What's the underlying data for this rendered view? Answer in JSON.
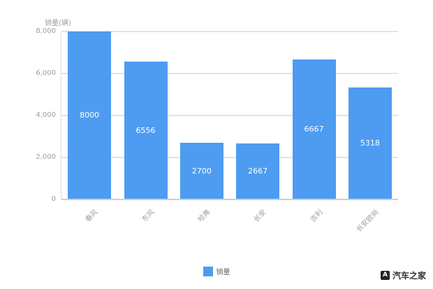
{
  "chart_data": {
    "type": "bar",
    "title": "",
    "ylabel": "销量(辆)",
    "xlabel": "",
    "categories": [
      "春风",
      "东风",
      "哈弗",
      "长安",
      "吉利",
      "长安欧尚"
    ],
    "values": [
      8000,
      6556,
      2700,
      2667,
      6667,
      5318
    ],
    "value_labels": [
      "8000",
      "6556",
      "2700",
      "2667",
      "6667",
      "5318"
    ],
    "ylim": [
      0,
      8000
    ],
    "y_ticks": [
      0,
      2000,
      4000,
      6000,
      8000
    ],
    "y_tick_labels": [
      "0",
      "2,000",
      "4,000",
      "6,000",
      "8,000"
    ],
    "grid": true,
    "legend_position": "bottom",
    "bar_color": "#4d9cf1"
  },
  "legend": {
    "label": "销量"
  },
  "watermark": {
    "icon_letter": "A",
    "text": "汽车之家"
  }
}
